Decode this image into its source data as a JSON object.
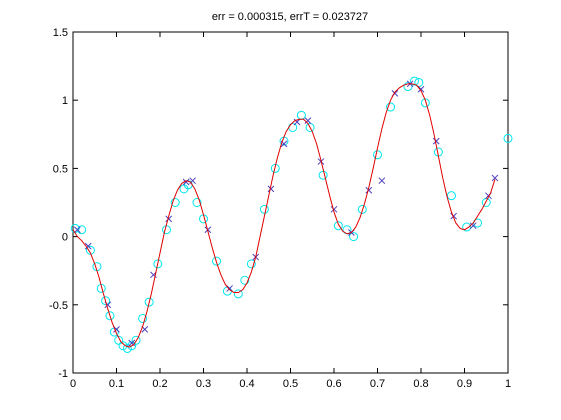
{
  "chart_data": {
    "type": "line",
    "title": "err = 0.000315, errT = 0.023727",
    "xlim": [
      0,
      1
    ],
    "xticks": [
      0,
      0.1,
      0.2,
      0.3,
      0.4,
      0.5,
      0.6,
      0.7,
      0.8,
      0.9,
      1
    ],
    "ylim": [
      -1,
      1.5
    ],
    "yticks": [
      -1,
      -0.5,
      0,
      0.5,
      1,
      1.5
    ],
    "grid": false,
    "series": [
      {
        "color": "#00e5ee",
        "marker": "circle",
        "x": [
          0.005,
          0.02,
          0.04,
          0.055,
          0.065,
          0.075,
          0.085,
          0.095,
          0.105,
          0.115,
          0.125,
          0.135,
          0.145,
          0.16,
          0.175,
          0.195,
          0.215,
          0.235,
          0.255,
          0.265,
          0.285,
          0.3,
          0.33,
          0.355,
          0.38,
          0.395,
          0.41,
          0.44,
          0.465,
          0.485,
          0.505,
          0.525,
          0.545,
          0.575,
          0.61,
          0.63,
          0.645,
          0.665,
          0.7,
          0.73,
          0.77,
          0.785,
          0.795,
          0.81,
          0.84,
          0.87,
          0.905,
          0.93,
          0.95,
          1.0
        ],
        "values": [
          0.06,
          0.05,
          -0.1,
          -0.22,
          -0.38,
          -0.47,
          -0.58,
          -0.7,
          -0.76,
          -0.8,
          -0.82,
          -0.8,
          -0.76,
          -0.6,
          -0.48,
          -0.2,
          0.05,
          0.25,
          0.35,
          0.38,
          0.25,
          0.13,
          -0.18,
          -0.4,
          -0.42,
          -0.32,
          -0.2,
          0.2,
          0.5,
          0.7,
          0.8,
          0.89,
          0.8,
          0.45,
          0.08,
          0.05,
          0.0,
          0.2,
          0.6,
          0.95,
          1.1,
          1.14,
          1.13,
          0.98,
          0.62,
          0.3,
          0.07,
          0.1,
          0.25,
          0.72
        ]
      },
      {
        "color": "#4b3fbf",
        "marker": "cross",
        "x": [
          0.01,
          0.035,
          0.08,
          0.1,
          0.135,
          0.165,
          0.185,
          0.22,
          0.26,
          0.275,
          0.31,
          0.36,
          0.42,
          0.455,
          0.485,
          0.515,
          0.54,
          0.57,
          0.6,
          0.64,
          0.68,
          0.71,
          0.74,
          0.775,
          0.8,
          0.835,
          0.875,
          0.92,
          0.955,
          0.97
        ],
        "values": [
          0.05,
          -0.07,
          -0.5,
          -0.68,
          -0.78,
          -0.68,
          -0.28,
          0.13,
          0.4,
          0.41,
          0.05,
          -0.38,
          -0.15,
          0.35,
          0.68,
          0.84,
          0.85,
          0.55,
          0.2,
          0.03,
          0.34,
          0.41,
          1.05,
          1.12,
          1.08,
          0.7,
          0.15,
          0.08,
          0.3,
          0.43
        ]
      },
      {
        "color": "#e00000",
        "marker": "line",
        "x": [
          0,
          0.01,
          0.02,
          0.03,
          0.04,
          0.05,
          0.06,
          0.07,
          0.08,
          0.09,
          0.1,
          0.11,
          0.12,
          0.13,
          0.14,
          0.15,
          0.16,
          0.17,
          0.18,
          0.19,
          0.2,
          0.21,
          0.22,
          0.23,
          0.24,
          0.25,
          0.26,
          0.27,
          0.28,
          0.29,
          0.3,
          0.31,
          0.32,
          0.33,
          0.34,
          0.35,
          0.36,
          0.37,
          0.38,
          0.39,
          0.4,
          0.41,
          0.42,
          0.43,
          0.44,
          0.45,
          0.46,
          0.47,
          0.48,
          0.49,
          0.5,
          0.51,
          0.52,
          0.53,
          0.54,
          0.55,
          0.56,
          0.57,
          0.58,
          0.59,
          0.6,
          0.61,
          0.62,
          0.63,
          0.64,
          0.65,
          0.66,
          0.67,
          0.68,
          0.69,
          0.7,
          0.71,
          0.72,
          0.73,
          0.74,
          0.75,
          0.76,
          0.77,
          0.78,
          0.79,
          0.8,
          0.81,
          0.82,
          0.83,
          0.84,
          0.85,
          0.86,
          0.87,
          0.88,
          0.89,
          0.9,
          0.91,
          0.92,
          0.93,
          0.94,
          0.95,
          0.96,
          0.97
        ],
        "values": [
          0.05,
          0.0,
          -0.03,
          -0.07,
          -0.12,
          -0.2,
          -0.3,
          -0.42,
          -0.53,
          -0.63,
          -0.71,
          -0.77,
          -0.8,
          -0.81,
          -0.79,
          -0.74,
          -0.66,
          -0.55,
          -0.42,
          -0.27,
          -0.12,
          0.03,
          0.15,
          0.26,
          0.34,
          0.39,
          0.41,
          0.4,
          0.35,
          0.27,
          0.16,
          0.04,
          -0.08,
          -0.19,
          -0.28,
          -0.35,
          -0.39,
          -0.41,
          -0.41,
          -0.39,
          -0.34,
          -0.26,
          -0.15,
          0.0,
          0.15,
          0.3,
          0.45,
          0.58,
          0.69,
          0.77,
          0.82,
          0.85,
          0.86,
          0.86,
          0.83,
          0.77,
          0.68,
          0.56,
          0.43,
          0.3,
          0.18,
          0.09,
          0.04,
          0.02,
          0.03,
          0.07,
          0.14,
          0.24,
          0.36,
          0.5,
          0.65,
          0.79,
          0.91,
          1.0,
          1.06,
          1.09,
          1.11,
          1.12,
          1.12,
          1.11,
          1.07,
          1.0,
          0.89,
          0.75,
          0.59,
          0.43,
          0.29,
          0.18,
          0.1,
          0.06,
          0.05,
          0.07,
          0.1,
          0.15,
          0.2,
          0.26,
          0.32,
          0.42
        ]
      }
    ]
  }
}
